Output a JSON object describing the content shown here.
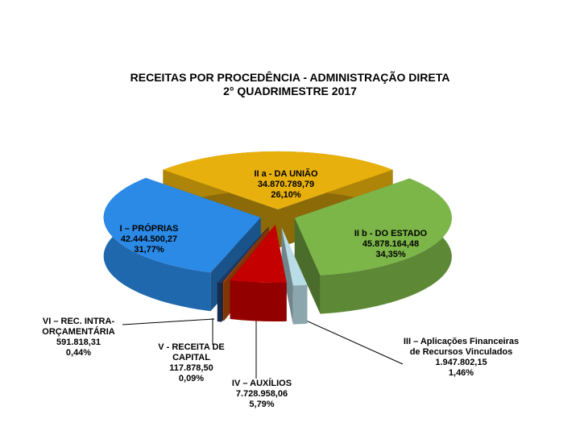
{
  "chart_data": {
    "type": "pie",
    "title": "RECEITAS POR PROCEDÊNCIA  - ADMINISTRAÇÃO DIRETA",
    "subtitle": "2° QUADRIMESTRE 2017",
    "categories": [
      "I – PRÓPRIAS",
      "II a - DA UNIÃO",
      "II b - DO ESTADO",
      "III –  Aplicações Financeiras de Recursos Vinculados",
      "IV – AUXÍLIOS",
      "V - RECEITA DE CAPITAL",
      "VI – REC. INTRA-ORÇAMENTÁRIA"
    ],
    "values": [
      42444500.27,
      34870789.79,
      45878164.48,
      1947802.15,
      7728958.06,
      117878.5,
      591818.31
    ],
    "value_labels": [
      "42.444.500,27",
      "34.870.789,79",
      "45.878.164,48",
      "1.947.802,15",
      "7.728.958,06",
      "117.878,50",
      "591.818,31"
    ],
    "percent_labels": [
      "31,77%",
      "26,10%",
      "34,35%",
      "1,46%",
      "5,79%",
      "0,09%",
      "0,44%"
    ],
    "colors": [
      "#2a8ae6",
      "#e8b00c",
      "#7cb648",
      "#b9dde6",
      "#c40000",
      "#d4580a",
      "#1f3a66"
    ]
  }
}
